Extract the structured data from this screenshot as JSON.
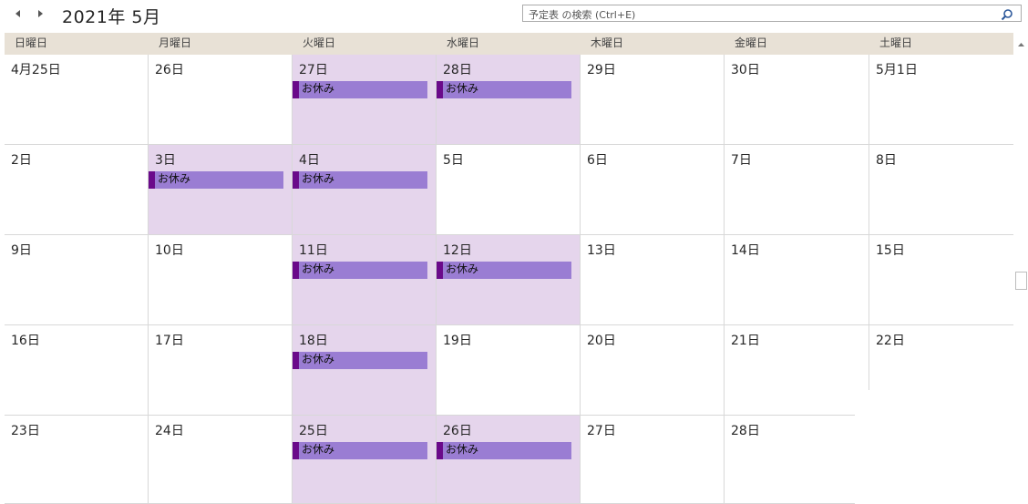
{
  "title": "2021年 5月",
  "search": {
    "placeholder": "予定表 の検索 (Ctrl+E)"
  },
  "weekdays": [
    "日曜日",
    "月曜日",
    "火曜日",
    "水曜日",
    "木曜日",
    "金曜日",
    "土曜日"
  ],
  "weeks": [
    [
      "4月25日",
      "26日",
      "27日",
      "28日",
      "29日",
      "30日",
      "5月1日"
    ],
    [
      "2日",
      "3日",
      "4日",
      "5日",
      "6日",
      "7日",
      "8日"
    ],
    [
      "9日",
      "10日",
      "11日",
      "12日",
      "13日",
      "14日",
      "15日"
    ],
    [
      "16日",
      "17日",
      "18日",
      "19日",
      "20日",
      "21日",
      "22日"
    ],
    [
      "23日",
      "24日",
      "25日",
      "26日",
      "27日",
      "28日",
      ""
    ]
  ],
  "events": {
    "label": "お休み",
    "days": [
      {
        "week": 0,
        "day": 2
      },
      {
        "week": 0,
        "day": 3
      },
      {
        "week": 1,
        "day": 1
      },
      {
        "week": 1,
        "day": 2
      },
      {
        "week": 2,
        "day": 2
      },
      {
        "week": 2,
        "day": 3
      },
      {
        "week": 3,
        "day": 2
      },
      {
        "week": 4,
        "day": 2
      },
      {
        "week": 4,
        "day": 3
      }
    ]
  },
  "colors": {
    "event_fill": "#9a7dd3",
    "event_bar": "#6a0a8a",
    "busy_day": "#e5d5ec",
    "header_bg": "#e8e1d6"
  }
}
